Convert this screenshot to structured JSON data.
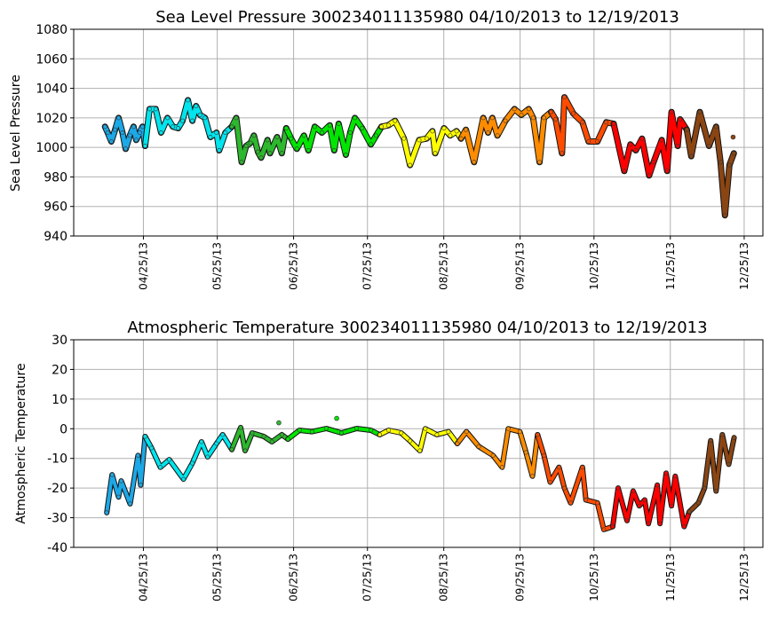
{
  "chart_data": [
    {
      "type": "line",
      "title": "Sea Level Pressure 300234011135980  04/10/2013 to 12/19/2013",
      "xlabel": "",
      "ylabel": "Sea Level Pressure",
      "x_units": "day of year 2013",
      "xlim": [
        86.7,
        366.6
      ],
      "ylim": [
        940,
        1080
      ],
      "yticks": [
        940,
        960,
        980,
        1000,
        1020,
        1040,
        1060,
        1080
      ],
      "xticks": [
        {
          "label": "04/25/13",
          "day": 115
        },
        {
          "label": "05/25/13",
          "day": 145
        },
        {
          "label": "06/25/13",
          "day": 176
        },
        {
          "label": "07/25/13",
          "day": 206
        },
        {
          "label": "08/25/13",
          "day": 237
        },
        {
          "label": "09/25/13",
          "day": 268
        },
        {
          "label": "10/25/13",
          "day": 298
        },
        {
          "label": "11/25/13",
          "day": 329
        },
        {
          "label": "12/25/13",
          "day": 359
        }
      ],
      "grid": true,
      "series": [
        {
          "name": "segment-1",
          "color": "#1ca8e6",
          "points": [
            [
              99.4,
              1014
            ],
            [
              100.5,
              1010
            ],
            [
              102,
              1004
            ],
            [
              103.5,
              1012
            ],
            [
              104.9,
              1020
            ],
            [
              106.5,
              1010
            ],
            [
              107.8,
              999
            ],
            [
              109.5,
              1008
            ],
            [
              111,
              1014
            ],
            [
              112.1,
              1005
            ],
            [
              113.5,
              1010
            ],
            [
              114.6,
              1014
            ],
            [
              115.7,
              1001
            ]
          ]
        },
        {
          "name": "segment-2",
          "color": "#00e5ee",
          "points": [
            [
              115.7,
              1001
            ],
            [
              117.5,
              1026
            ],
            [
              120,
              1026
            ],
            [
              122.2,
              1010
            ],
            [
              124.8,
              1020
            ],
            [
              127,
              1014
            ],
            [
              129.1,
              1013
            ],
            [
              130.9,
              1018
            ],
            [
              133.1,
              1032
            ],
            [
              134.9,
              1018
            ],
            [
              136.4,
              1028
            ],
            [
              138,
              1022
            ],
            [
              140,
              1020
            ],
            [
              142.2,
              1007
            ],
            [
              144.7,
              1010
            ],
            [
              145.8,
              998
            ],
            [
              148.3,
              1010
            ],
            [
              150.9,
              1014
            ]
          ]
        },
        {
          "name": "segment-3",
          "color": "#2db82d",
          "points": [
            [
              150.9,
              1014
            ],
            [
              152.7,
              1020
            ],
            [
              154.9,
              990
            ],
            [
              156.7,
              1001
            ],
            [
              158.5,
              1003
            ],
            [
              159.9,
              1008
            ],
            [
              161.5,
              997
            ],
            [
              162.8,
              993
            ],
            [
              165.4,
              1005
            ],
            [
              166.4,
              996
            ],
            [
              169.3,
              1007
            ],
            [
              171.2,
              996
            ],
            [
              173,
              1013
            ]
          ]
        },
        {
          "name": "segment-4",
          "color": "#00e600",
          "points": [
            [
              173,
              1013
            ],
            [
              175,
              1006
            ],
            [
              177.3,
              999
            ],
            [
              180.2,
              1008
            ],
            [
              182,
              998
            ],
            [
              184.6,
              1014
            ],
            [
              187.5,
              1010
            ],
            [
              190.7,
              1015
            ],
            [
              192.5,
              998
            ],
            [
              194.3,
              1016
            ],
            [
              197.2,
              995
            ],
            [
              199,
              1010
            ],
            [
              200.9,
              1020
            ],
            [
              203.8,
              1013
            ],
            [
              207.4,
              1002
            ],
            [
              209.5,
              1008
            ],
            [
              211.7,
              1014
            ]
          ]
        },
        {
          "name": "segment-5",
          "color": "#ffff00",
          "points": [
            [
              211.7,
              1014
            ],
            [
              214.5,
              1015
            ],
            [
              217.2,
              1018
            ],
            [
              220.8,
              1006
            ],
            [
              223.3,
              988
            ],
            [
              227,
              1005
            ],
            [
              230,
              1006
            ],
            [
              232.4,
              1011
            ],
            [
              233.5,
              996
            ],
            [
              237.1,
              1013
            ],
            [
              239.6,
              1008
            ],
            [
              242.2,
              1011
            ],
            [
              244,
              1006
            ]
          ]
        },
        {
          "name": "segment-6",
          "color": "#ff8c00",
          "points": [
            [
              244,
              1006
            ],
            [
              246,
              1012
            ],
            [
              249.3,
              990
            ],
            [
              253,
              1020
            ],
            [
              255,
              1010
            ],
            [
              256.7,
              1020
            ],
            [
              258.8,
              1008
            ],
            [
              262,
              1018
            ],
            [
              265.7,
              1026
            ],
            [
              268.5,
              1022
            ],
            [
              271.5,
              1026
            ],
            [
              273.3,
              1020
            ],
            [
              275.9,
              990
            ],
            [
              277.7,
              1020
            ],
            [
              280.6,
              1024
            ]
          ]
        },
        {
          "name": "segment-7",
          "color": "#ff4c00",
          "points": [
            [
              280.6,
              1024
            ],
            [
              282.4,
              1019
            ],
            [
              285,
              996
            ],
            [
              286,
              1034
            ],
            [
              289.6,
              1023
            ],
            [
              293.3,
              1017
            ],
            [
              295.8,
              1004
            ],
            [
              299.4,
              1004
            ],
            [
              303,
              1017
            ],
            [
              306,
              1016
            ]
          ]
        },
        {
          "name": "segment-8",
          "color": "#ff0000",
          "points": [
            [
              306,
              1016
            ],
            [
              310.3,
              984
            ],
            [
              312.8,
              1002
            ],
            [
              315,
              998
            ],
            [
              317.5,
              1006
            ],
            [
              320.4,
              981
            ],
            [
              322.2,
              990
            ],
            [
              325.5,
              1005
            ],
            [
              327.7,
              984
            ],
            [
              329.5,
              1024
            ],
            [
              332,
              1001
            ],
            [
              333,
              1019
            ],
            [
              335.7,
              1012
            ]
          ]
        },
        {
          "name": "segment-9",
          "color": "#8b4513",
          "points": [
            [
              335.7,
              1012
            ],
            [
              337.5,
              994
            ],
            [
              341,
              1024
            ],
            [
              344.7,
              1001
            ],
            [
              347.6,
              1014
            ],
            [
              349.4,
              990
            ],
            [
              351.2,
              954
            ],
            [
              353,
              988
            ],
            [
              354.8,
              996
            ]
          ]
        }
      ],
      "outliers": [
        {
          "color": "#8b4513",
          "x": 354.5,
          "y": 1007
        }
      ]
    },
    {
      "type": "scatter",
      "title": "Atmospheric Temperature 300234011135980  04/10/2013 to 12/19/2013",
      "xlabel": "",
      "ylabel": "Atmospheric Temperature",
      "x_units": "day of year 2013",
      "xlim": [
        86.7,
        366.6
      ],
      "ylim": [
        -40,
        30
      ],
      "yticks": [
        -40,
        -30,
        -20,
        -10,
        0,
        10,
        20,
        30
      ],
      "xticks": [
        {
          "label": "04/25/13",
          "day": 115
        },
        {
          "label": "05/25/13",
          "day": 145
        },
        {
          "label": "06/25/13",
          "day": 176
        },
        {
          "label": "07/25/13",
          "day": 206
        },
        {
          "label": "08/25/13",
          "day": 237
        },
        {
          "label": "09/25/13",
          "day": 268
        },
        {
          "label": "10/25/13",
          "day": 298
        },
        {
          "label": "11/25/13",
          "day": 329
        },
        {
          "label": "12/25/13",
          "day": 359
        }
      ],
      "grid": true,
      "series": [
        {
          "name": "segment-1",
          "color": "#1ca8e6",
          "points": [
            [
              100.1,
              -28.3
            ],
            [
              102.3,
              -15.5
            ],
            [
              104.9,
              -23
            ],
            [
              106,
              -17.6
            ],
            [
              109.6,
              -25.3
            ],
            [
              112.8,
              -9
            ],
            [
              113.9,
              -19
            ],
            [
              115.7,
              -2.6
            ]
          ]
        },
        {
          "name": "segment-2",
          "color": "#00e5ee",
          "points": [
            [
              115.7,
              -2.6
            ],
            [
              118.3,
              -6.5
            ],
            [
              121.9,
              -13
            ],
            [
              125.5,
              -10.4
            ],
            [
              131.3,
              -17
            ],
            [
              134.9,
              -11.6
            ],
            [
              138.6,
              -4.4
            ],
            [
              141.1,
              -9.5
            ],
            [
              144.7,
              -5
            ],
            [
              147.2,
              -2
            ],
            [
              150.9,
              -7
            ]
          ]
        },
        {
          "name": "segment-3",
          "color": "#2db82d",
          "points": [
            [
              150.9,
              -7
            ],
            [
              154.5,
              0.4
            ],
            [
              156.3,
              -7.4
            ],
            [
              159.2,
              -1.4
            ],
            [
              163.9,
              -2.6
            ],
            [
              167.2,
              -4.4
            ],
            [
              171.2,
              -2
            ],
            [
              173.7,
              -3.5
            ]
          ]
        },
        {
          "name": "segment-4",
          "color": "#00e600",
          "points": [
            [
              173.7,
              -3.5
            ],
            [
              178.4,
              -0.5
            ],
            [
              183.5,
              -1
            ],
            [
              189.3,
              0.1
            ],
            [
              195.4,
              -1.4
            ],
            [
              201.6,
              0.1
            ],
            [
              207.4,
              -0.5
            ],
            [
              211,
              -2
            ]
          ]
        },
        {
          "name": "segment-5",
          "color": "#ffff00",
          "points": [
            [
              211,
              -2
            ],
            [
              214.6,
              -0.5
            ],
            [
              219.7,
              -1.4
            ],
            [
              223.3,
              -4.1
            ],
            [
              227.3,
              -7.4
            ],
            [
              229.5,
              0
            ],
            [
              234.2,
              -2
            ],
            [
              238.9,
              -1
            ],
            [
              242.5,
              -5
            ]
          ]
        },
        {
          "name": "segment-6",
          "color": "#ff8c00",
          "points": [
            [
              242.5,
              -5
            ],
            [
              246.2,
              -1
            ],
            [
              251.2,
              -6
            ],
            [
              257,
              -9
            ],
            [
              260.7,
              -13
            ],
            [
              263.2,
              0
            ],
            [
              267.9,
              -1
            ],
            [
              270.4,
              -8
            ],
            [
              273,
              -16
            ],
            [
              275.1,
              -2
            ]
          ]
        },
        {
          "name": "segment-7",
          "color": "#ff4c00",
          "points": [
            [
              275.1,
              -2
            ],
            [
              277.7,
              -9
            ],
            [
              280.2,
              -18
            ],
            [
              283.8,
              -13
            ],
            [
              286,
              -20
            ],
            [
              288.5,
              -25
            ],
            [
              293.3,
              -13
            ],
            [
              294.7,
              -24
            ],
            [
              299.4,
              -25
            ],
            [
              302,
              -34
            ],
            [
              305.6,
              -33
            ]
          ]
        },
        {
          "name": "segment-8",
          "color": "#ff0000",
          "points": [
            [
              305.6,
              -33
            ],
            [
              307.8,
              -20
            ],
            [
              311.4,
              -31
            ],
            [
              313.9,
              -21
            ],
            [
              316.4,
              -26
            ],
            [
              318.6,
              -24
            ],
            [
              320.1,
              -32
            ],
            [
              323.7,
              -19
            ],
            [
              324.8,
              -32
            ],
            [
              327.3,
              -15
            ],
            [
              329.5,
              -26
            ],
            [
              331,
              -16
            ],
            [
              334.6,
              -33
            ],
            [
              336.7,
              -28
            ]
          ]
        },
        {
          "name": "segment-9",
          "color": "#8b4513",
          "points": [
            [
              336.7,
              -28
            ],
            [
              340.4,
              -25
            ],
            [
              342.9,
              -20
            ],
            [
              345.4,
              -4
            ],
            [
              347.6,
              -21
            ],
            [
              350.1,
              -2
            ],
            [
              352.7,
              -12
            ],
            [
              354.9,
              -3
            ]
          ]
        }
      ],
      "outliers": [
        {
          "color": "#2db82d",
          "x": 170,
          "y": 2
        },
        {
          "color": "#00e600",
          "x": 193.5,
          "y": 3.5
        }
      ]
    }
  ]
}
